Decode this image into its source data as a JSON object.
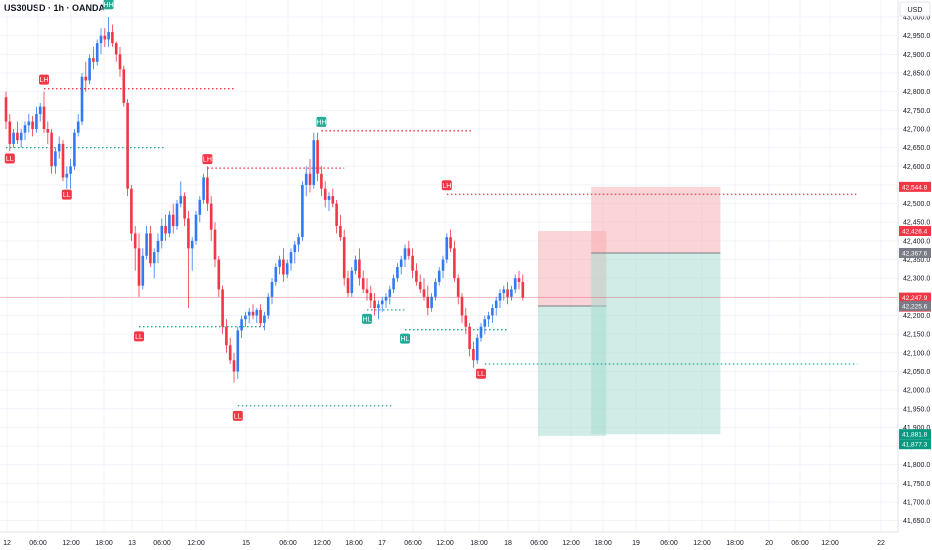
{
  "header": {
    "symbol": "US30USD · 1h · OANDA",
    "currency": "USD"
  },
  "colors": {
    "up": "#3179f5",
    "down": "#f23645",
    "bull_badge": "#22ab94",
    "bear_badge": "#f23645",
    "stop_zone": "#f7a9b0",
    "target_zone": "#a3dacd"
  },
  "chart_data": {
    "type": "candlestick",
    "ylim": [
      41625,
      43035
    ],
    "y_ticks": [
      "43,000.0",
      "42,950.0",
      "42,900.0",
      "42,850.0",
      "42,800.0",
      "42,750.0",
      "42,700.0",
      "42,650.0",
      "42,600.0",
      "42,550.0",
      "42,500.0",
      "42,450.0",
      "42,400.0",
      "42,350.0",
      "42,300.0",
      "42,250.0",
      "42,200.0",
      "42,150.0",
      "42,100.0",
      "42,050.0",
      "42,000.0",
      "41,950.0",
      "41,900.0",
      "41,850.0",
      "41,800.0",
      "41,750.0",
      "41,700.0",
      "41,650.0"
    ],
    "x_ticks": [
      "12",
      "06:00",
      "12:00",
      "18:00",
      "13",
      "06:00",
      "12:00",
      "15",
      "06:00",
      "12:00",
      "18:00",
      "17",
      "06:00",
      "12:00",
      "18:00",
      "18",
      "06:00",
      "12:00",
      "18:00",
      "19",
      "06:00",
      "12:00",
      "18:00",
      "20",
      "06:00",
      "12:00",
      "22"
    ],
    "price_tags": [
      {
        "label": "42,544.8",
        "value": 42544.8,
        "color": "#f23645"
      },
      {
        "label": "42,426.4",
        "value": 42426.4,
        "color": "#f23645"
      },
      {
        "label": "42,367.6",
        "value": 42367.6,
        "color": "#787b86"
      },
      {
        "label": "42,247.9",
        "value": 42247.9,
        "color": "#f23645"
      },
      {
        "label": "32:46",
        "value": 42235,
        "color": "#f23645"
      },
      {
        "label": "42,225.6",
        "value": 42225.6,
        "color": "#787b86"
      },
      {
        "label": "41,881.8",
        "value": 41881.8,
        "color": "#089981"
      },
      {
        "label": "41,877.3",
        "value": 41877.3,
        "color": "#089981"
      }
    ],
    "swing_labels": [
      {
        "text": "LL",
        "i": 1,
        "price": 42645,
        "kind": "bear",
        "pos": "below"
      },
      {
        "text": "LH",
        "i": 10,
        "price": 42808,
        "kind": "bear",
        "pos": "above"
      },
      {
        "text": "LL",
        "i": 16,
        "price": 42548,
        "kind": "bear",
        "pos": "below"
      },
      {
        "text": "HH",
        "i": 27,
        "price": 43010,
        "kind": "bull",
        "pos": "above"
      },
      {
        "text": "LL",
        "i": 35,
        "price": 42168,
        "kind": "bear",
        "pos": "below"
      },
      {
        "text": "LH",
        "i": 53,
        "price": 42595,
        "kind": "bear",
        "pos": "above"
      },
      {
        "text": "LL",
        "i": 61,
        "price": 41955,
        "kind": "bear",
        "pos": "below"
      },
      {
        "text": "HH",
        "i": 83,
        "price": 42695,
        "kind": "bull",
        "pos": "above"
      },
      {
        "text": "HL",
        "i": 95,
        "price": 42215,
        "kind": "bull",
        "pos": "below"
      },
      {
        "text": "HL",
        "i": 105,
        "price": 42162,
        "kind": "bull",
        "pos": "below"
      },
      {
        "text": "LH",
        "i": 116,
        "price": 42525,
        "kind": "bear",
        "pos": "above"
      },
      {
        "text": "LL",
        "i": 125,
        "price": 42068,
        "kind": "bear",
        "pos": "below"
      }
    ],
    "levels": [
      {
        "price": 42808,
        "from": 10,
        "to": 60,
        "color": "#f23645"
      },
      {
        "price": 42650,
        "from": 0,
        "to": 42,
        "color": "#22ab94"
      },
      {
        "price": 42695,
        "from": 83,
        "to": 123,
        "color": "#f23645"
      },
      {
        "price": 42595,
        "from": 53,
        "to": 89,
        "color": "#f23645"
      },
      {
        "price": 42170,
        "from": 35,
        "to": 68,
        "color": "#22ab94"
      },
      {
        "price": 41958,
        "from": 61,
        "to": 102,
        "color": "#22ab94"
      },
      {
        "price": 42215,
        "from": 95,
        "to": 105,
        "color": "#22ab94"
      },
      {
        "price": 42162,
        "from": 105,
        "to": 132,
        "color": "#22ab94"
      },
      {
        "price": 42525,
        "from": 116,
        "to": 224,
        "color": "#f23645"
      },
      {
        "price": 42070,
        "from": 126,
        "to": 224,
        "color": "#22ab94"
      }
    ],
    "positions": [
      {
        "from": 140,
        "to": 158,
        "entry": 42225.6,
        "stop": 42426.4,
        "target": 41877.3
      },
      {
        "from": 154,
        "to": 188,
        "entry": 42367.6,
        "stop": 42544.8,
        "target": 41881.8
      }
    ],
    "candles": [
      [
        42785,
        42800,
        42700,
        42720
      ],
      [
        42720,
        42740,
        42640,
        42660
      ],
      [
        42660,
        42700,
        42650,
        42690
      ],
      [
        42690,
        42720,
        42660,
        42670
      ],
      [
        42670,
        42700,
        42650,
        42690
      ],
      [
        42690,
        42720,
        42670,
        42710
      ],
      [
        42710,
        42740,
        42690,
        42720
      ],
      [
        42720,
        42735,
        42680,
        42700
      ],
      [
        42700,
        42760,
        42690,
        42740
      ],
      [
        42740,
        42770,
        42720,
        42760
      ],
      [
        42760,
        42800,
        42690,
        42700
      ],
      [
        42700,
        42720,
        42660,
        42690
      ],
      [
        42690,
        42700,
        42580,
        42600
      ],
      [
        42600,
        42650,
        42580,
        42640
      ],
      [
        42640,
        42680,
        42620,
        42660
      ],
      [
        42660,
        42670,
        42560,
        42570
      ],
      [
        42570,
        42600,
        42540,
        42580
      ],
      [
        42580,
        42620,
        42540,
        42600
      ],
      [
        42600,
        42700,
        42590,
        42690
      ],
      [
        42690,
        42740,
        42680,
        42720
      ],
      [
        42720,
        42850,
        42710,
        42840
      ],
      [
        42840,
        42880,
        42800,
        42830
      ],
      [
        42830,
        42900,
        42820,
        42890
      ],
      [
        42890,
        42920,
        42860,
        42880
      ],
      [
        42880,
        42940,
        42870,
        42930
      ],
      [
        42930,
        42970,
        42900,
        42950
      ],
      [
        42950,
        42970,
        42920,
        42940
      ],
      [
        42940,
        43000,
        42920,
        42960
      ],
      [
        42960,
        42980,
        42920,
        42930
      ],
      [
        42930,
        42935,
        42880,
        42900
      ],
      [
        42900,
        42920,
        42840,
        42860
      ],
      [
        42860,
        42870,
        42760,
        42770
      ],
      [
        42770,
        42780,
        42520,
        42540
      ],
      [
        42540,
        42550,
        42400,
        42420
      ],
      [
        42420,
        42440,
        42320,
        42380
      ],
      [
        42380,
        42420,
        42250,
        42280
      ],
      [
        42280,
        42380,
        42270,
        42360
      ],
      [
        42360,
        42440,
        42350,
        42420
      ],
      [
        42420,
        42440,
        42330,
        42340
      ],
      [
        42340,
        42380,
        42300,
        42370
      ],
      [
        42370,
        42420,
        42340,
        42400
      ],
      [
        42400,
        42460,
        42380,
        42440
      ],
      [
        42440,
        42470,
        42400,
        42420
      ],
      [
        42420,
        42480,
        42410,
        42470
      ],
      [
        42470,
        42500,
        42420,
        42440
      ],
      [
        42440,
        42510,
        42430,
        42500
      ],
      [
        42500,
        42560,
        42490,
        42520
      ],
      [
        42520,
        42530,
        42440,
        42460
      ],
      [
        42460,
        42480,
        42220,
        42380
      ],
      [
        42380,
        42410,
        42320,
        42400
      ],
      [
        42400,
        42480,
        42390,
        42470
      ],
      [
        42470,
        42520,
        42450,
        42510
      ],
      [
        42510,
        42580,
        42500,
        42570
      ],
      [
        42570,
        42600,
        42480,
        42500
      ],
      [
        42500,
        42520,
        42400,
        42430
      ],
      [
        42430,
        42450,
        42330,
        42350
      ],
      [
        42350,
        42360,
        42250,
        42270
      ],
      [
        42270,
        42280,
        42150,
        42170
      ],
      [
        42170,
        42190,
        42100,
        42120
      ],
      [
        42120,
        42140,
        42070,
        42080
      ],
      [
        42080,
        42100,
        42020,
        42050
      ],
      [
        42050,
        42170,
        42030,
        42160
      ],
      [
        42160,
        42200,
        42140,
        42190
      ],
      [
        42190,
        42210,
        42170,
        42200
      ],
      [
        42200,
        42220,
        42180,
        42210
      ],
      [
        42210,
        42230,
        42190,
        42200
      ],
      [
        42200,
        42220,
        42180,
        42215
      ],
      [
        42215,
        42230,
        42170,
        42180
      ],
      [
        42180,
        42210,
        42160,
        42200
      ],
      [
        42200,
        42260,
        42190,
        42250
      ],
      [
        42250,
        42300,
        42230,
        42290
      ],
      [
        42290,
        42340,
        42280,
        42330
      ],
      [
        42330,
        42360,
        42310,
        42350
      ],
      [
        42350,
        42380,
        42290,
        42310
      ],
      [
        42310,
        42350,
        42300,
        42340
      ],
      [
        42340,
        42380,
        42320,
        42370
      ],
      [
        42370,
        42400,
        42340,
        42390
      ],
      [
        42390,
        42420,
        42370,
        42410
      ],
      [
        42410,
        42560,
        42400,
        42550
      ],
      [
        42550,
        42600,
        42520,
        42580
      ],
      [
        42580,
        42620,
        42530,
        42550
      ],
      [
        42550,
        42690,
        42540,
        42670
      ],
      [
        42670,
        42690,
        42560,
        42580
      ],
      [
        42580,
        42600,
        42520,
        42540
      ],
      [
        42540,
        42560,
        42490,
        42510
      ],
      [
        42510,
        42530,
        42480,
        42520
      ],
      [
        42520,
        42540,
        42490,
        42500
      ],
      [
        42500,
        42510,
        42420,
        42440
      ],
      [
        42440,
        42470,
        42400,
        42410
      ],
      [
        42410,
        42430,
        42280,
        42300
      ],
      [
        42300,
        42320,
        42250,
        42260
      ],
      [
        42260,
        42330,
        42250,
        42320
      ],
      [
        42320,
        42360,
        42310,
        42350
      ],
      [
        42350,
        42380,
        42280,
        42300
      ],
      [
        42300,
        42320,
        42260,
        42270
      ],
      [
        42270,
        42300,
        42240,
        42260
      ],
      [
        42260,
        42280,
        42220,
        42240
      ],
      [
        42240,
        42260,
        42200,
        42220
      ],
      [
        42220,
        42240,
        42190,
        42230
      ],
      [
        42230,
        42250,
        42210,
        42240
      ],
      [
        42240,
        42260,
        42220,
        42250
      ],
      [
        42250,
        42280,
        42230,
        42270
      ],
      [
        42270,
        42310,
        42260,
        42300
      ],
      [
        42300,
        42340,
        42290,
        42330
      ],
      [
        42330,
        42360,
        42310,
        42350
      ],
      [
        42350,
        42390,
        42330,
        42380
      ],
      [
        42380,
        42400,
        42350,
        42360
      ],
      [
        42360,
        42380,
        42300,
        42320
      ],
      [
        42320,
        42340,
        42280,
        42290
      ],
      [
        42290,
        42310,
        42260,
        42270
      ],
      [
        42270,
        42300,
        42240,
        42250
      ],
      [
        42250,
        42280,
        42200,
        42220
      ],
      [
        42220,
        42260,
        42210,
        42250
      ],
      [
        42250,
        42300,
        42240,
        42290
      ],
      [
        42290,
        42330,
        42280,
        42320
      ],
      [
        42320,
        42360,
        42300,
        42350
      ],
      [
        42350,
        42420,
        42340,
        42410
      ],
      [
        42410,
        42430,
        42370,
        42380
      ],
      [
        42380,
        42400,
        42290,
        42300
      ],
      [
        42300,
        42310,
        42230,
        42250
      ],
      [
        42250,
        42260,
        42180,
        42200
      ],
      [
        42200,
        42220,
        42150,
        42170
      ],
      [
        42170,
        42180,
        42090,
        42110
      ],
      [
        42110,
        42130,
        42060,
        42080
      ],
      [
        42080,
        42150,
        42070,
        42140
      ],
      [
        42140,
        42180,
        42130,
        42170
      ],
      [
        42170,
        42200,
        42150,
        42190
      ],
      [
        42190,
        42210,
        42170,
        42200
      ],
      [
        42200,
        42230,
        42180,
        42220
      ],
      [
        42220,
        42250,
        42200,
        42240
      ],
      [
        42240,
        42270,
        42220,
        42260
      ],
      [
        42260,
        42280,
        42240,
        42270
      ],
      [
        42270,
        42290,
        42230,
        42250
      ],
      [
        42250,
        42280,
        42240,
        42270
      ],
      [
        42270,
        42310,
        42260,
        42300
      ],
      [
        42300,
        42320,
        42270,
        42290
      ],
      [
        42290,
        42310,
        42240,
        42248
      ]
    ]
  }
}
